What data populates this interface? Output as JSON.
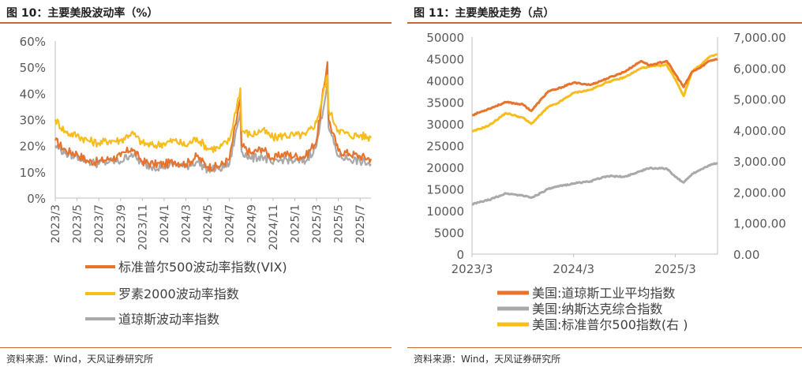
{
  "left_panel": {
    "title": "图 10：主要美股波动率（%）",
    "source": "资料来源：Wind，天风证券研究所"
  },
  "right_panel": {
    "title": "图 11：主要美股走势（点）",
    "source": "资料来源：Wind，天风证券研究所"
  },
  "colors": {
    "orange": "#e8732c",
    "yellow": "#f7bd1a",
    "gray": "#a9a9a9",
    "rule": "#c8672c"
  },
  "chart_data": [
    {
      "type": "line",
      "title": "",
      "xlabel": "",
      "ylabel": "",
      "x_ticks": [
        "2023/3",
        "2023/5",
        "2023/7",
        "2023/9",
        "2023/11",
        "2024/1",
        "2024/3",
        "2024/5",
        "2024/7",
        "2024/9",
        "2024/11",
        "2025/1",
        "2025/3",
        "2025/5",
        "2025/7"
      ],
      "y_ticks": [
        "0%",
        "10%",
        "20%",
        "30%",
        "40%",
        "50%",
        "60%"
      ],
      "ylim": [
        0,
        60
      ],
      "x_unit": "month",
      "grid": false,
      "legend_position": "bottom",
      "series": [
        {
          "name": "标准普尔500波动率指数(VIX)",
          "color": "#e8732c",
          "x": [
            "2023/3",
            "2023/4",
            "2023/5",
            "2023/6",
            "2023/7",
            "2023/8",
            "2023/9",
            "2023/10",
            "2023/11",
            "2023/12",
            "2024/1",
            "2024/2",
            "2024/3",
            "2024/4",
            "2024/5",
            "2024/6",
            "2024/7",
            "2024/8",
            "2024/8.1",
            "2024/9",
            "2024/10",
            "2024/11",
            "2024/12",
            "2025/1",
            "2025/2",
            "2025/3",
            "2025/4",
            "2025/4.1",
            "2025/5",
            "2025/6",
            "2025/7",
            "2025/8"
          ],
          "values": [
            22,
            18,
            17,
            14,
            14,
            15,
            16,
            19,
            14,
            13,
            13,
            14,
            13,
            16,
            12,
            12,
            15,
            38,
            20,
            17,
            19,
            15,
            17,
            16,
            16,
            22,
            52,
            30,
            18,
            17,
            16,
            15
          ]
        },
        {
          "name": "罗素2000波动率指数",
          "color": "#f7bd1a",
          "x": [
            "2023/3",
            "2023/4",
            "2023/5",
            "2023/6",
            "2023/7",
            "2023/8",
            "2023/9",
            "2023/10",
            "2023/11",
            "2023/12",
            "2024/1",
            "2024/2",
            "2024/3",
            "2024/4",
            "2024/5",
            "2024/6",
            "2024/7",
            "2024/8",
            "2024/8.1",
            "2024/9",
            "2024/10",
            "2024/11",
            "2024/12",
            "2025/1",
            "2025/2",
            "2025/3",
            "2025/4",
            "2025/4.1",
            "2025/5",
            "2025/6",
            "2025/7",
            "2025/8"
          ],
          "values": [
            30,
            25,
            24,
            22,
            21,
            22,
            22,
            25,
            21,
            20,
            21,
            22,
            20,
            23,
            19,
            19,
            22,
            42,
            26,
            24,
            26,
            23,
            24,
            24,
            24,
            29,
            47,
            34,
            26,
            24,
            24,
            23
          ]
        },
        {
          "name": "道琼斯波动率指数",
          "color": "#a9a9a9",
          "x": [
            "2023/3",
            "2023/4",
            "2023/5",
            "2023/6",
            "2023/7",
            "2023/8",
            "2023/9",
            "2023/10",
            "2023/11",
            "2023/12",
            "2024/1",
            "2024/2",
            "2024/3",
            "2024/4",
            "2024/5",
            "2024/6",
            "2024/7",
            "2024/8",
            "2024/8.1",
            "2024/9",
            "2024/10",
            "2024/11",
            "2024/12",
            "2025/1",
            "2025/2",
            "2025/3",
            "2025/4",
            "2025/4.1",
            "2025/5",
            "2025/6",
            "2025/7",
            "2025/8"
          ],
          "values": [
            20,
            17,
            16,
            14,
            13,
            14,
            14,
            17,
            13,
            12,
            12,
            13,
            12,
            14,
            11,
            11,
            13,
            33,
            18,
            15,
            16,
            13,
            15,
            14,
            14,
            20,
            44,
            27,
            16,
            15,
            14,
            13
          ]
        }
      ]
    },
    {
      "type": "line",
      "title": "",
      "xlabel": "",
      "ylabel": "",
      "x_ticks": [
        "2023/3",
        "2024/3",
        "2025/3"
      ],
      "y_left_ticks": [
        "0",
        "5000",
        "10000",
        "15000",
        "20000",
        "25000",
        "30000",
        "35000",
        "40000",
        "45000",
        "50000"
      ],
      "y_left_lim": [
        0,
        50000
      ],
      "y_right_ticks": [
        "0.00",
        "1,000.00",
        "2,000.00",
        "3,000.00",
        "4,000.00",
        "5,000.00",
        "6,000.00",
        "7,000.00"
      ],
      "y_right_lim": [
        0,
        7000
      ],
      "x_unit": "month",
      "grid": false,
      "legend_position": "bottom",
      "series": [
        {
          "name": "美国:道琼斯工业平均指数",
          "axis": "left",
          "color": "#e8732c",
          "x": [
            "2023/3",
            "2023/5",
            "2023/7",
            "2023/9",
            "2023/10",
            "2023/12",
            "2024/1",
            "2024/3",
            "2024/5",
            "2024/7",
            "2024/9",
            "2024/11",
            "2024/12",
            "2025/2",
            "2025/3",
            "2025/4",
            "2025/5",
            "2025/6",
            "2025/7",
            "2025/8"
          ],
          "values": [
            32000,
            33500,
            35000,
            34500,
            33000,
            37500,
            38000,
            39500,
            39000,
            40500,
            42000,
            44500,
            43500,
            44500,
            41500,
            38500,
            42000,
            43000,
            44500,
            45000
          ]
        },
        {
          "name": "美国:纳斯达克综合指数",
          "axis": "left",
          "color": "#a9a9a9",
          "x": [
            "2023/3",
            "2023/5",
            "2023/7",
            "2023/9",
            "2023/10",
            "2023/12",
            "2024/1",
            "2024/3",
            "2024/5",
            "2024/7",
            "2024/9",
            "2024/11",
            "2024/12",
            "2025/2",
            "2025/3",
            "2025/4",
            "2025/5",
            "2025/6",
            "2025/7",
            "2025/8"
          ],
          "values": [
            11500,
            12500,
            14000,
            13500,
            13000,
            15000,
            15500,
            16300,
            16800,
            18000,
            17800,
            19200,
            19800,
            19700,
            17800,
            16500,
            18500,
            19500,
            20500,
            21000
          ]
        },
        {
          "name": "美国:标准普尔500指数(右 )",
          "axis": "right",
          "color": "#f7bd1a",
          "x": [
            "2023/3",
            "2023/5",
            "2023/7",
            "2023/9",
            "2023/10",
            "2023/12",
            "2024/1",
            "2024/3",
            "2024/5",
            "2024/7",
            "2024/9",
            "2024/11",
            "2024/12",
            "2025/2",
            "2025/3",
            "2025/4",
            "2025/5",
            "2025/6",
            "2025/7",
            "2025/8"
          ],
          "values": [
            3950,
            4150,
            4550,
            4400,
            4200,
            4750,
            4850,
            5200,
            5300,
            5550,
            5700,
            6000,
            6050,
            6100,
            5650,
            5100,
            5900,
            6100,
            6350,
            6450
          ]
        }
      ]
    }
  ]
}
